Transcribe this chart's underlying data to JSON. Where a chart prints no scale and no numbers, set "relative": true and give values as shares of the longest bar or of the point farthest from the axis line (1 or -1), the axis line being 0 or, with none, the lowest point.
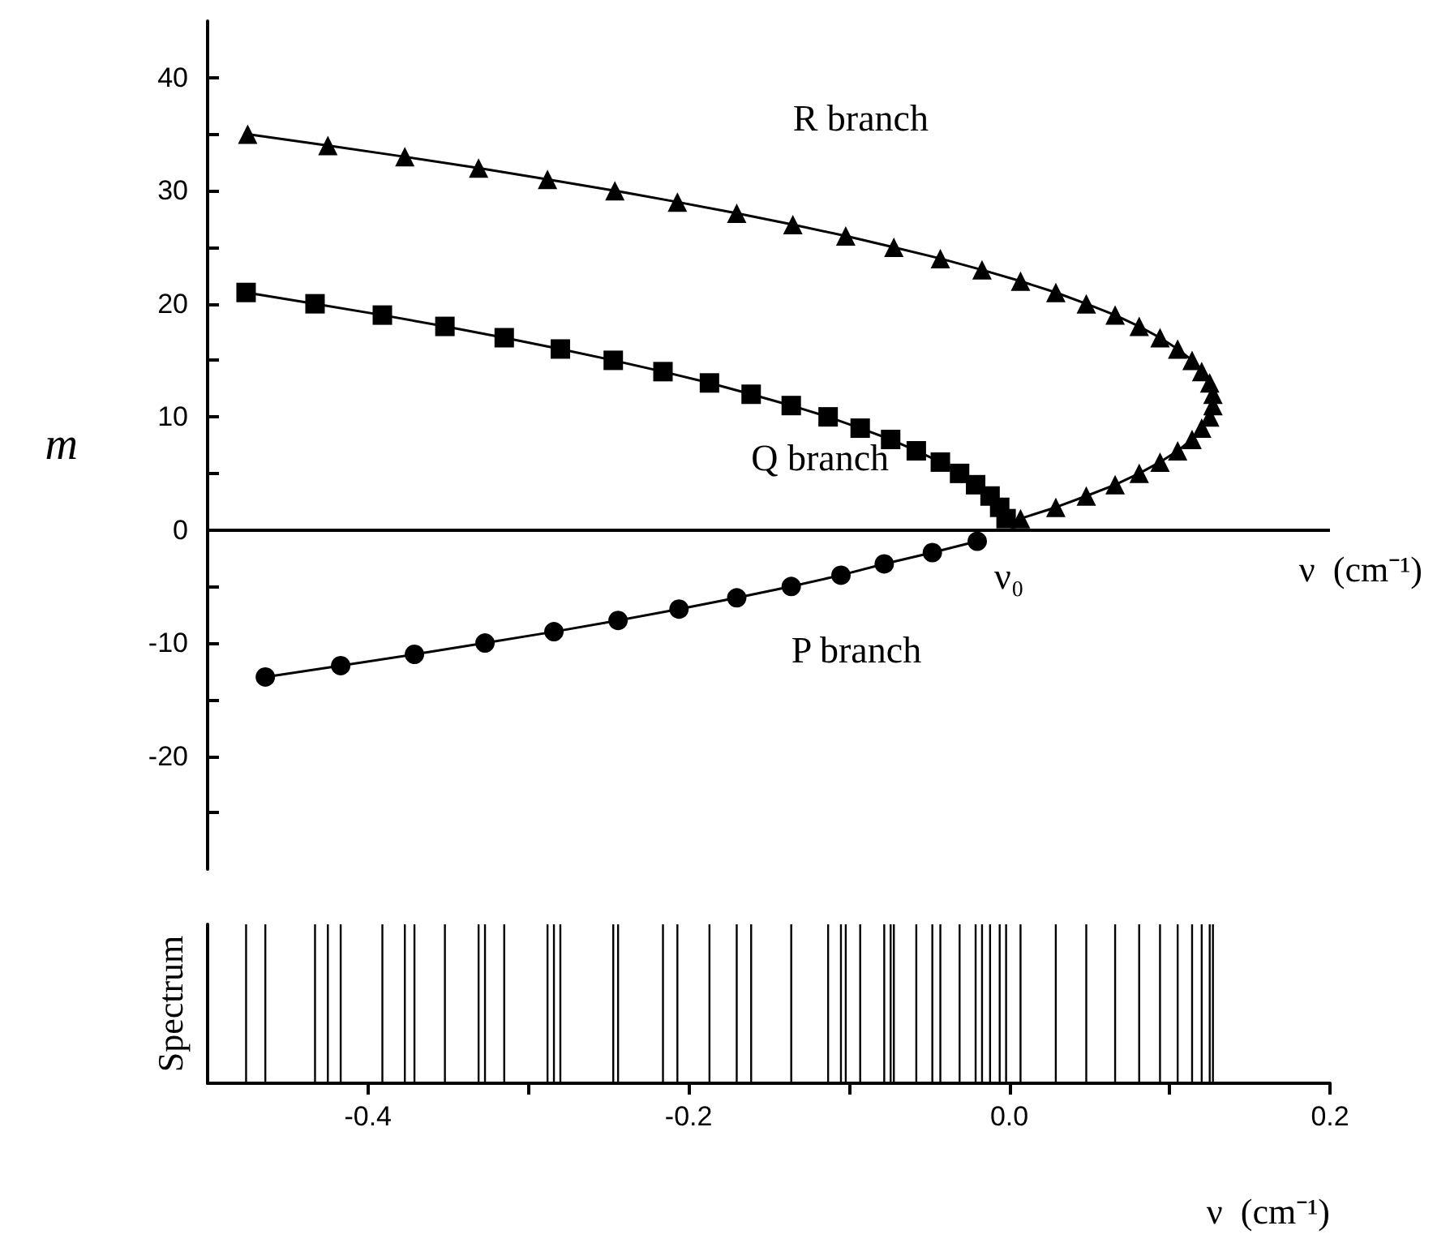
{
  "chart_data": [
    {
      "type": "line",
      "ylabel": "m",
      "xlim": [
        -0.5,
        0.2
      ],
      "ylim": [
        -30,
        45
      ],
      "tick_labels": "y",
      "ref_lines": [
        {
          "axis": "y",
          "value": 0,
          "label": "ν  (cm⁻¹)",
          "color": "#000000"
        }
      ],
      "annotations": [
        "ν₀"
      ],
      "yticks": [
        {
          "value": -25,
          "label": null
        },
        -20,
        {
          "value": -15,
          "label": null
        },
        -10,
        {
          "value": -5,
          "label": null
        },
        0,
        {
          "value": 5,
          "label": null
        },
        10,
        {
          "value": 15,
          "label": null
        },
        20,
        {
          "value": 25,
          "label": null
        },
        30,
        {
          "value": 35,
          "label": null
        },
        40
      ],
      "grid": false,
      "line_style": "solid",
      "series": [
        {
          "name": "R branch",
          "color": "#000000",
          "marker": "triangle",
          "x": [
            0.007,
            0.029,
            0.048,
            0.066,
            0.081,
            0.094,
            0.105,
            0.114,
            0.12,
            0.125,
            0.127,
            0.127,
            0.125,
            0.12,
            0.114,
            0.105,
            0.094,
            0.081,
            0.066,
            0.048,
            0.029,
            0.007,
            -0.017,
            -0.043,
            -0.072,
            -0.102,
            -0.135,
            -0.17,
            -0.207,
            -0.246,
            -0.288,
            -0.331,
            -0.377,
            -0.425,
            -0.475
          ],
          "values": [
            1,
            2,
            3,
            4,
            5,
            6,
            7,
            8,
            9,
            10,
            11,
            12,
            13,
            14,
            15,
            16,
            17,
            18,
            19,
            20,
            21,
            22,
            23,
            24,
            25,
            26,
            27,
            28,
            29,
            30,
            31,
            32,
            33,
            34,
            35
          ]
        },
        {
          "name": "Q branch",
          "color": "#000000",
          "marker": "square",
          "x": [
            -0.002,
            -0.006,
            -0.012,
            -0.021,
            -0.031,
            -0.043,
            -0.058,
            -0.074,
            -0.093,
            -0.113,
            -0.136,
            -0.161,
            -0.187,
            -0.216,
            -0.247,
            -0.28,
            -0.315,
            -0.352,
            -0.391,
            -0.433,
            -0.476
          ],
          "values": [
            1,
            2,
            3,
            4,
            5,
            6,
            7,
            8,
            9,
            10,
            11,
            12,
            13,
            14,
            15,
            16,
            17,
            18,
            19,
            20,
            21
          ]
        },
        {
          "name": "P branch",
          "color": "#000000",
          "marker": "circle",
          "x": [
            -0.02,
            -0.048,
            -0.078,
            -0.105,
            -0.136,
            -0.17,
            -0.206,
            -0.244,
            -0.284,
            -0.327,
            -0.371,
            -0.417,
            -0.464
          ],
          "values": [
            -1,
            -2,
            -3,
            -4,
            -5,
            -6,
            -7,
            -8,
            -9,
            -10,
            -11,
            -12,
            -13
          ]
        }
      ]
    },
    {
      "type": "bar",
      "ylabel": "Spectrum",
      "xlabel": "ν  (cm⁻¹)",
      "relative": true,
      "xlim": [
        -0.5,
        0.2
      ],
      "xticks": [
        -0.4,
        {
          "value": -0.3,
          "label": null
        },
        -0.2,
        {
          "value": -0.1,
          "label": null
        },
        {
          "value": 0,
          "label": "0.0"
        },
        {
          "value": 0.1,
          "label": null
        },
        0.2
      ],
      "tick_labels": "x",
      "color": "#000000",
      "x": [
        -0.476,
        -0.464,
        -0.433,
        -0.425,
        -0.417,
        -0.391,
        -0.377,
        -0.371,
        -0.352,
        -0.331,
        -0.327,
        -0.315,
        -0.288,
        -0.284,
        -0.28,
        -0.247,
        -0.244,
        -0.216,
        -0.207,
        -0.187,
        -0.17,
        -0.161,
        -0.136,
        -0.113,
        -0.105,
        -0.102,
        -0.093,
        -0.078,
        -0.074,
        -0.072,
        -0.058,
        -0.048,
        -0.043,
        -0.031,
        -0.021,
        -0.017,
        -0.012,
        -0.006,
        -0.002,
        0.007,
        0.029,
        0.048,
        0.066,
        0.081,
        0.094,
        0.105,
        0.114,
        0.12,
        0.125,
        0.127
      ],
      "values": [
        1,
        1,
        1,
        1,
        1,
        1,
        1,
        1,
        1,
        1,
        1,
        1,
        1,
        1,
        1,
        1,
        1,
        1,
        1,
        1,
        1,
        1,
        1,
        1,
        1,
        1,
        1,
        1,
        1,
        1,
        1,
        1,
        1,
        1,
        1,
        1,
        1,
        1,
        1,
        1,
        1,
        1,
        1,
        1,
        1,
        1,
        1,
        1,
        1,
        1
      ]
    }
  ]
}
